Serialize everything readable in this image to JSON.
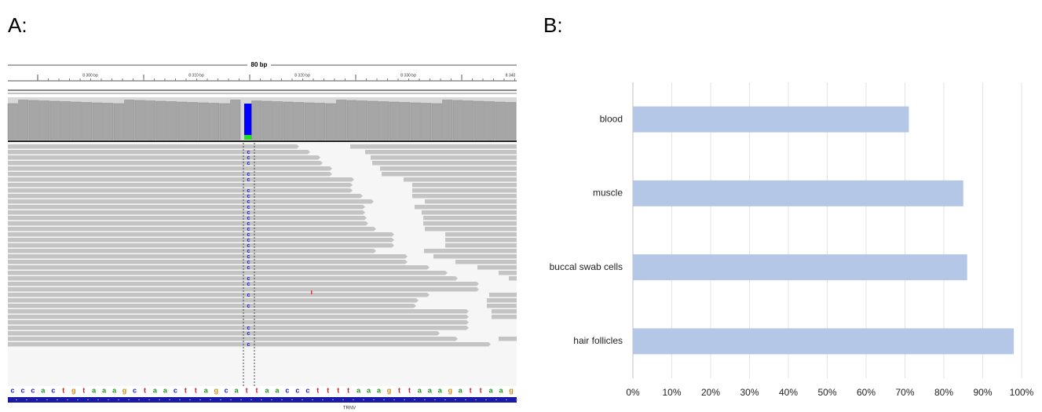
{
  "panel_a": {
    "label": "A:",
    "ruler": {
      "span": "80 bp",
      "ticks": [
        "8 300 bp",
        "8 310 bp",
        "8 320 bp",
        "8 330 bp",
        "8 340"
      ]
    },
    "mismatch_base": "c",
    "sequence": [
      "c",
      "c",
      "c",
      "a",
      "c",
      "t",
      "g",
      "t",
      "a",
      "a",
      "a",
      "g",
      "c",
      "t",
      "a",
      "a",
      "c",
      "t",
      "t",
      "a",
      "g",
      "c",
      "a",
      "t",
      "t",
      "a",
      "a",
      "c",
      "c",
      "c",
      "t",
      "t",
      "t",
      "t",
      "a",
      "a",
      "a",
      "g",
      "t",
      "t",
      "a",
      "a",
      "a",
      "g",
      "a",
      "t",
      "t",
      "a",
      "a",
      "g"
    ],
    "gene": "TRNV"
  },
  "panel_b_label": "B:",
  "chart_data": {
    "type": "hbar",
    "categories": [
      "blood",
      "muscle",
      "buccal swab cells",
      "hair follicles"
    ],
    "values": [
      71,
      85,
      86,
      98
    ],
    "color": "#b4c7e7",
    "xlim": [
      0,
      100
    ],
    "xticks": [
      {
        "value": 0,
        "label": "0%"
      },
      {
        "value": 10,
        "label": "10%"
      },
      {
        "value": 20,
        "label": "20%"
      },
      {
        "value": 30,
        "label": "30%"
      },
      {
        "value": 40,
        "label": "40%"
      },
      {
        "value": 50,
        "label": "50%"
      },
      {
        "value": 60,
        "label": "60%"
      },
      {
        "value": 70,
        "label": "70%"
      },
      {
        "value": 80,
        "label": "80%"
      },
      {
        "value": 90,
        "label": "90%"
      },
      {
        "value": 100,
        "label": "100%"
      }
    ],
    "grid": true
  }
}
